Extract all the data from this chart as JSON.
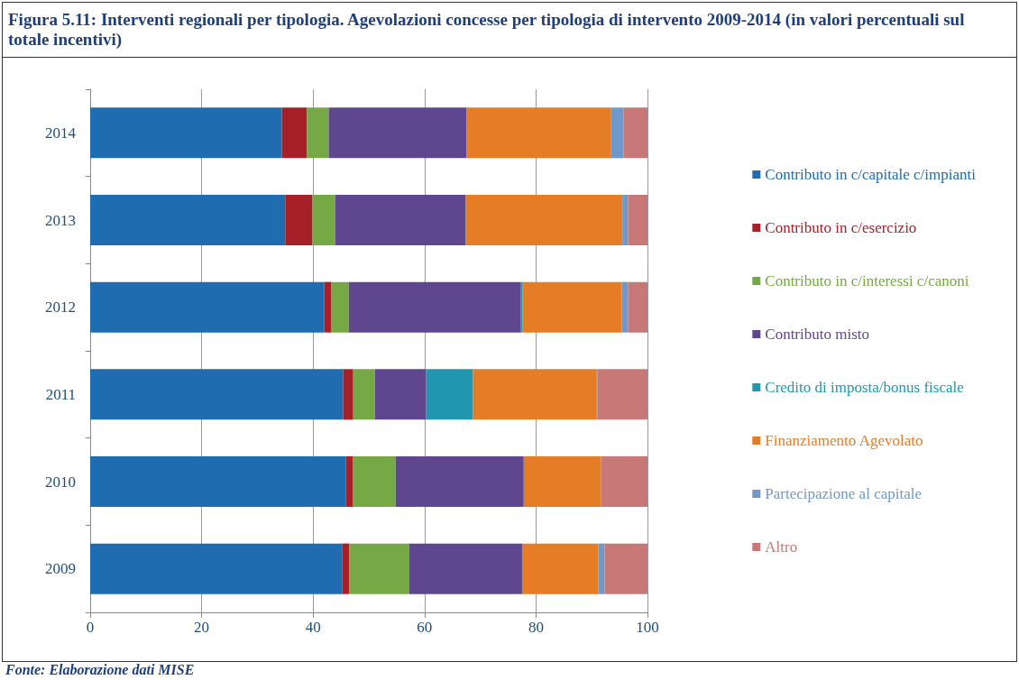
{
  "chart_data": {
    "type": "bar",
    "orientation": "horizontal",
    "stacked": true,
    "title": "Figura 5.11: Interventi regionali per tipologia. Agevolazioni concesse per tipologia di intervento 2009-2014 (in valori percentuali sul totale incentivi)",
    "categories": [
      "2014",
      "2013",
      "2012",
      "2011",
      "2010",
      "2009"
    ],
    "series": [
      {
        "name": "Contributo in c/capitale c/impianti",
        "color": "#1f6cb0",
        "values": [
          34.4,
          35.0,
          42.0,
          45.4,
          45.9,
          45.2
        ]
      },
      {
        "name": "Contributo in c/esercizio",
        "color": "#a52127",
        "values": [
          4.5,
          4.9,
          1.3,
          1.8,
          1.2,
          1.3
        ]
      },
      {
        "name": "Contributo in c/interessi c/canoni",
        "color": "#77a846",
        "values": [
          3.9,
          4.1,
          3.1,
          3.9,
          7.7,
          10.7
        ]
      },
      {
        "name": "Contributo misto",
        "color": "#5e478e",
        "values": [
          24.7,
          23.4,
          30.9,
          9.2,
          23.0,
          20.3
        ]
      },
      {
        "name": "Credito di imposta/bonus fiscale",
        "color": "#2196b0",
        "values": [
          0.1,
          0,
          0.3,
          8.4,
          0,
          0
        ]
      },
      {
        "name": "Finanziamento Agevolato",
        "color": "#e57d27",
        "values": [
          25.8,
          28.1,
          17.8,
          22.1,
          13.9,
          13.7
        ]
      },
      {
        "name": "Partecipazione al capitale",
        "color": "#7098c8",
        "values": [
          2.3,
          1.0,
          1.1,
          0.2,
          0,
          1.1
        ]
      },
      {
        "name": "Altro",
        "color": "#c97878",
        "values": [
          4.3,
          3.5,
          3.5,
          9.0,
          8.3,
          7.7
        ]
      }
    ],
    "xlim": [
      0,
      100
    ],
    "xticks": [
      0,
      20,
      40,
      60,
      80,
      100
    ],
    "grid": "x",
    "legend": "right",
    "annotations": [
      "Fonte: Elaborazione dati MISE"
    ]
  }
}
